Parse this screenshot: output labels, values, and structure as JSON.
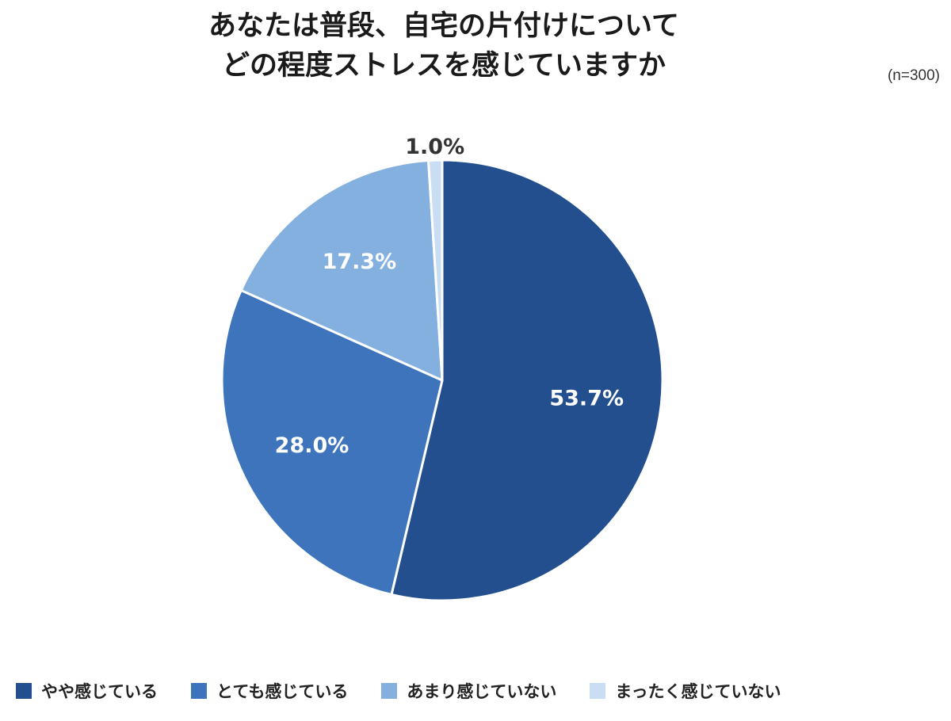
{
  "chart_data": {
    "type": "pie",
    "title_lines": [
      "あなたは普段、自宅の片付けについて",
      "どの程度ストレスを感じていますか"
    ],
    "sample_size": "(n=300)",
    "categories": [
      "やや感じている",
      "とても感じている",
      "あまり感じていない",
      "まったく感じていない"
    ],
    "values": [
      53.7,
      28.0,
      17.3,
      1.0
    ],
    "value_labels": [
      "53.7%",
      "28.0%",
      "17.3%",
      "1.0%"
    ],
    "colors": [
      "#234f8e",
      "#3d74bc",
      "#83b0de",
      "#c9def2"
    ],
    "label_colors": [
      "#ffffff",
      "#ffffff",
      "#ffffff",
      "#333333"
    ],
    "start_angle_deg": 0,
    "direction": "clockwise",
    "legend_position": "bottom"
  }
}
